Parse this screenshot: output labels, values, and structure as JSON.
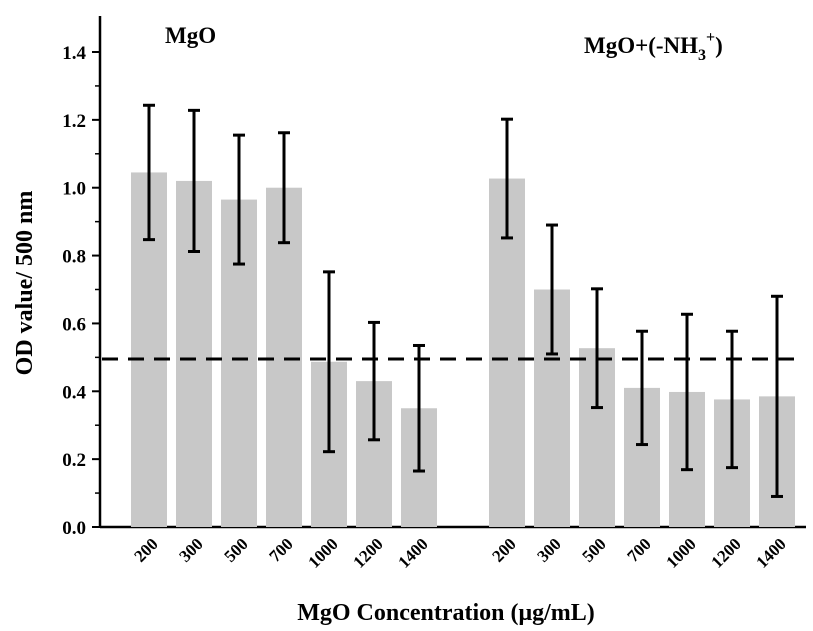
{
  "chart_data": {
    "type": "bar",
    "ylabel": "OD value/ 500 nm",
    "xlabel": "MgO Concentration (μg/mL)",
    "ylim": [
      0,
      1.5
    ],
    "yticks": [
      "0.0",
      "0.2",
      "0.4",
      "0.6",
      "0.8",
      "1.0",
      "1.2",
      "1.4"
    ],
    "grid": false,
    "threshold": 0.495,
    "bar_color": "#c8c8c8",
    "groups": [
      {
        "title": "MgO",
        "categories": [
          "200",
          "300",
          "500",
          "700",
          "1000",
          "1200",
          "1400"
        ],
        "values": [
          1.045,
          1.02,
          0.965,
          1.0,
          0.487,
          0.43,
          0.35
        ],
        "errors": [
          0.198,
          0.208,
          0.19,
          0.162,
          0.265,
          0.173,
          0.185
        ]
      },
      {
        "title": "MgO+(-NH",
        "title_sub": "3",
        "title_sup": "+",
        "title_end": ")",
        "categories": [
          "200",
          "300",
          "500",
          "700",
          "1000",
          "1200",
          "1400"
        ],
        "values": [
          1.027,
          0.7,
          0.527,
          0.41,
          0.398,
          0.376,
          0.385
        ],
        "errors": [
          0.175,
          0.19,
          0.175,
          0.167,
          0.229,
          0.201,
          0.295
        ]
      }
    ]
  }
}
